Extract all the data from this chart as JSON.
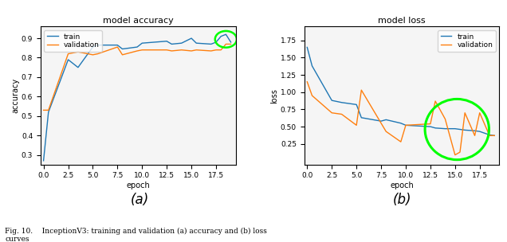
{
  "train_acc": [
    0.27,
    0.52,
    0.79,
    0.75,
    0.855,
    0.865,
    0.865,
    0.845,
    0.855,
    0.875,
    0.885,
    0.87,
    0.875,
    0.9,
    0.875,
    0.87,
    0.88,
    0.91,
    0.92,
    0.88
  ],
  "val_acc": [
    0.53,
    0.53,
    0.82,
    0.83,
    0.815,
    0.82,
    0.855,
    0.815,
    0.835,
    0.84,
    0.84,
    0.835,
    0.84,
    0.835,
    0.84,
    0.835,
    0.84,
    0.84,
    0.87,
    0.87
  ],
  "epochs_acc": [
    0.0,
    0.5,
    2.5,
    3.5,
    5.0,
    5.5,
    7.5,
    8.0,
    9.5,
    10.0,
    12.5,
    13.0,
    14.0,
    15.0,
    15.5,
    17.0,
    17.5,
    18.0,
    18.5,
    19.0
  ],
  "train_loss": [
    1.65,
    1.38,
    0.88,
    0.85,
    0.82,
    0.63,
    0.58,
    0.6,
    0.55,
    0.52,
    0.5,
    0.48,
    0.47,
    0.47,
    0.46,
    0.45,
    0.44,
    0.43,
    0.38,
    0.37
  ],
  "val_loss": [
    1.15,
    0.95,
    0.7,
    0.68,
    0.52,
    1.03,
    0.55,
    0.43,
    0.28,
    0.52,
    0.54,
    0.87,
    0.61,
    0.09,
    0.13,
    0.7,
    0.37,
    0.7,
    0.37,
    0.37
  ],
  "epochs_loss": [
    0.0,
    0.5,
    2.5,
    3.5,
    5.0,
    5.5,
    7.5,
    8.0,
    9.5,
    10.0,
    12.5,
    13.0,
    14.0,
    15.0,
    15.5,
    16.0,
    17.0,
    17.5,
    18.5,
    19.0
  ],
  "train_color": "#1f77b4",
  "val_color": "#ff7f0e",
  "title_acc": "model accuracy",
  "title_loss": "model loss",
  "xlabel": "epoch",
  "ylabel_acc": "accuracy",
  "ylabel_loss": "loss",
  "label_train": "train",
  "label_val": "validation",
  "sub_a": "(a)",
  "sub_b": "(b)",
  "caption": "Fig. 10.    InceptionV3: training and validation (a) accuracy and (b) loss\ncurves",
  "bg_color": "#ffffff",
  "plot_bg": "#f5f5f5"
}
